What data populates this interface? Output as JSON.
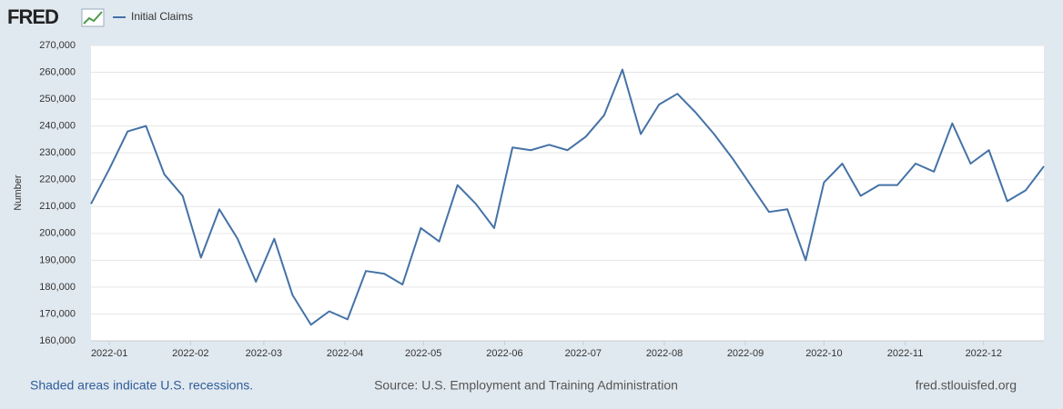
{
  "logo": "FRED",
  "footer": {
    "left": "Shaded areas indicate U.S. recessions.",
    "center": "Source: U.S. Employment and Training Administration",
    "right": "fred.stlouisfed.org"
  },
  "chart_data": {
    "type": "line",
    "ylabel": "Number",
    "series": [
      {
        "name": "Initial Claims",
        "color": "#4572a7",
        "values": [
          211000,
          224000,
          238000,
          240000,
          222000,
          214000,
          191000,
          209000,
          198000,
          182000,
          198000,
          177000,
          166000,
          171000,
          168000,
          186000,
          185000,
          181000,
          202000,
          197000,
          218000,
          211000,
          202000,
          232000,
          231000,
          233000,
          231000,
          236000,
          244000,
          261000,
          237000,
          248000,
          252000,
          245000,
          237000,
          228000,
          218000,
          208000,
          209000,
          190000,
          219000,
          226000,
          214000,
          218000,
          218000,
          226000,
          223000,
          241000,
          226000,
          231000,
          212000,
          216000,
          225000
        ]
      }
    ],
    "xlim": [
      0,
      52
    ],
    "xticks": [
      {
        "value": 1,
        "label": "2022-01"
      },
      {
        "value": 5.43,
        "label": "2022-02"
      },
      {
        "value": 9.43,
        "label": "2022-03"
      },
      {
        "value": 13.86,
        "label": "2022-04"
      },
      {
        "value": 18.14,
        "label": "2022-05"
      },
      {
        "value": 22.57,
        "label": "2022-06"
      },
      {
        "value": 26.86,
        "label": "2022-07"
      },
      {
        "value": 31.29,
        "label": "2022-08"
      },
      {
        "value": 35.71,
        "label": "2022-09"
      },
      {
        "value": 40,
        "label": "2022-10"
      },
      {
        "value": 44.43,
        "label": "2022-11"
      },
      {
        "value": 48.71,
        "label": "2022-12"
      }
    ],
    "ylim": [
      160000,
      270000
    ],
    "yticks": [
      {
        "value": 160000,
        "label": "160,000"
      },
      {
        "value": 170000,
        "label": "170,000"
      },
      {
        "value": 180000,
        "label": "180,000"
      },
      {
        "value": 190000,
        "label": "190,000"
      },
      {
        "value": 200000,
        "label": "200,000"
      },
      {
        "value": 210000,
        "label": "210,000"
      },
      {
        "value": 220000,
        "label": "220,000"
      },
      {
        "value": 230000,
        "label": "230,000"
      },
      {
        "value": 240000,
        "label": "240,000"
      },
      {
        "value": 250000,
        "label": "250,000"
      },
      {
        "value": 260000,
        "label": "260,000"
      },
      {
        "value": 270000,
        "label": "270,000"
      }
    ],
    "grid": true
  }
}
